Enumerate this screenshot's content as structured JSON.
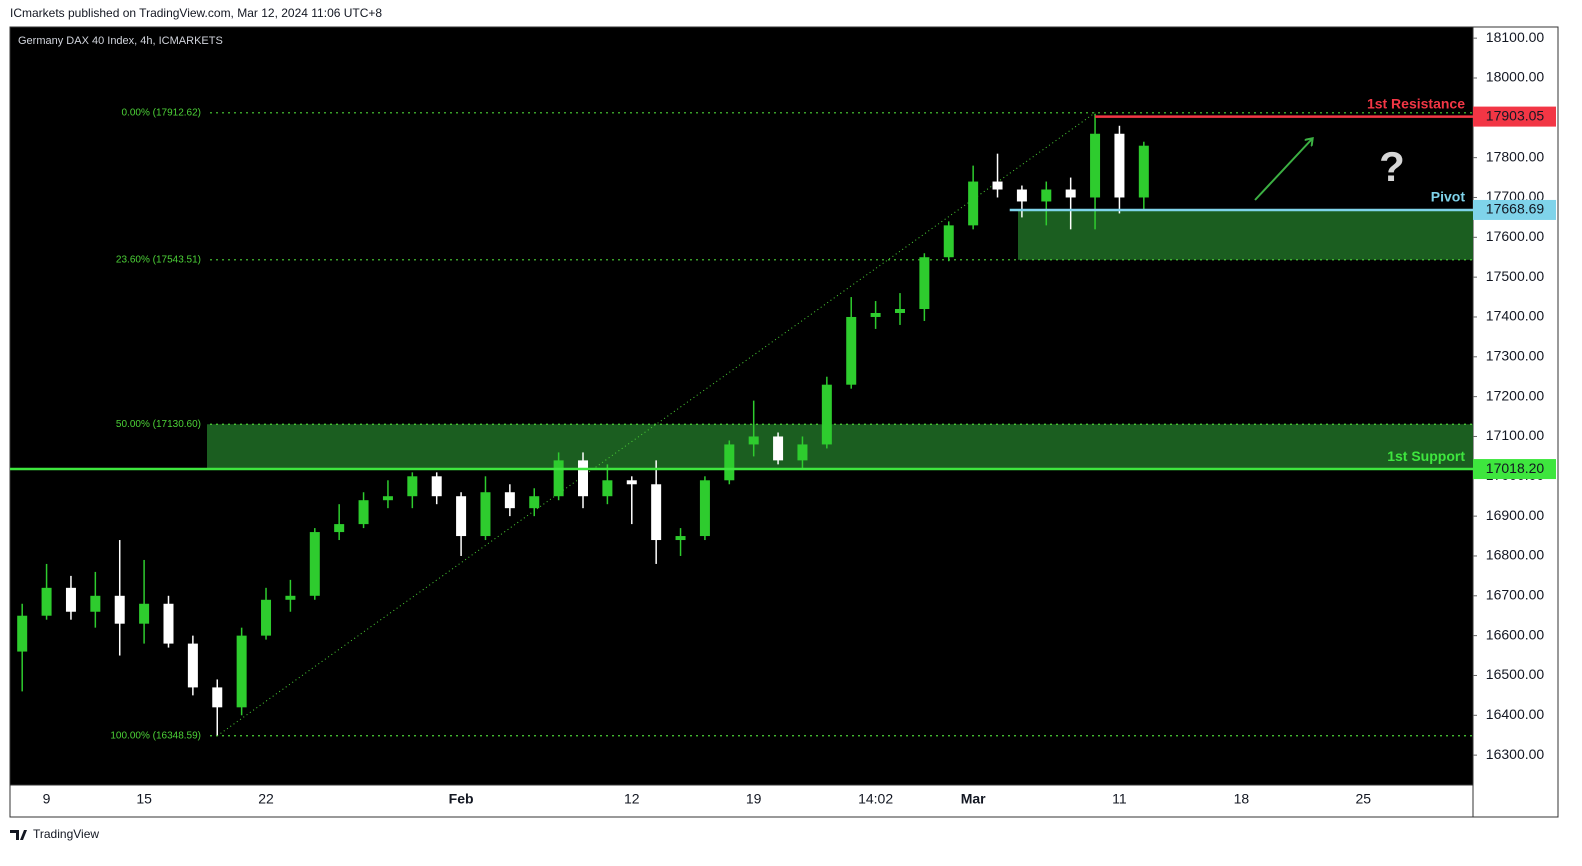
{
  "header": {
    "publisher": "ICmarkets published on TradingView.com, Mar 12, 2024 11:06 UTC+8",
    "footer": "TradingView"
  },
  "chart_data": {
    "type": "candlestick",
    "title": "Germany DAX 40 Index, 4h, ICMARKETS",
    "categories": [
      null,
      "9",
      null,
      null,
      null,
      "15",
      null,
      null,
      null,
      null,
      "22",
      null,
      null,
      null,
      null,
      null,
      null,
      null,
      "Feb",
      null,
      null,
      null,
      null,
      null,
      null,
      "12",
      null,
      null,
      null,
      null,
      "19",
      null,
      null,
      null,
      null,
      "14:02",
      null,
      null,
      null,
      "Mar",
      null,
      null,
      null,
      null,
      null,
      "11",
      null,
      null,
      null,
      null,
      "18",
      null,
      null,
      null,
      null,
      "25",
      null,
      null,
      null,
      null
    ],
    "open": [
      16560,
      16650,
      16720,
      16660,
      16700,
      16630,
      16680,
      16580,
      16470,
      16420,
      16600,
      16690,
      16700,
      16860,
      16880,
      16940,
      16950,
      17000,
      16950,
      16850,
      16960,
      16920,
      16950,
      17040,
      16950,
      16990,
      16980,
      16840,
      16850,
      16990,
      17080,
      17100,
      17040,
      17080,
      17230,
      17400,
      17410,
      17420,
      17550,
      17630,
      17740,
      17720,
      17690,
      17720,
      17700,
      17860,
      17700,
      null,
      null,
      null,
      null,
      null,
      null,
      null,
      null,
      null,
      null,
      null,
      null,
      null
    ],
    "high": [
      16680,
      16780,
      16750,
      16760,
      16840,
      16790,
      16700,
      16600,
      16490,
      16620,
      16720,
      16740,
      16870,
      16930,
      16960,
      16990,
      17010,
      17010,
      16960,
      17000,
      16980,
      16970,
      17060,
      17060,
      17030,
      17000,
      17040,
      16870,
      17000,
      17090,
      17190,
      17110,
      17100,
      17250,
      17450,
      17440,
      17460,
      17560,
      17640,
      17780,
      17810,
      17730,
      17740,
      17750,
      17910,
      17880,
      17840,
      null,
      null,
      null,
      null,
      null,
      null,
      null,
      null,
      null,
      null,
      null,
      null,
      null
    ],
    "low": [
      16460,
      16640,
      16640,
      16620,
      16550,
      16580,
      16570,
      16450,
      16350,
      16400,
      16590,
      16660,
      16690,
      16840,
      16870,
      16920,
      16920,
      16930,
      16800,
      16840,
      16900,
      16900,
      16940,
      16920,
      16930,
      16880,
      16780,
      16800,
      16840,
      16980,
      17050,
      17030,
      17020,
      17070,
      17220,
      17370,
      17380,
      17390,
      17540,
      17620,
      17700,
      17650,
      17630,
      17620,
      17620,
      17660,
      17670,
      null,
      null,
      null,
      null,
      null,
      null,
      null,
      null,
      null,
      null,
      null,
      null,
      null
    ],
    "close": [
      16650,
      16720,
      16660,
      16700,
      16630,
      16680,
      16580,
      16470,
      16420,
      16600,
      16690,
      16700,
      16860,
      16880,
      16940,
      16950,
      17000,
      16950,
      16850,
      16960,
      16920,
      16950,
      17040,
      16950,
      16990,
      16980,
      16840,
      16850,
      16990,
      17080,
      17100,
      17040,
      17080,
      17230,
      17400,
      17410,
      17420,
      17550,
      17630,
      17740,
      17720,
      17690,
      17720,
      17700,
      17860,
      17700,
      17830,
      null,
      null,
      null,
      null,
      null,
      null,
      null,
      null,
      null,
      null,
      null,
      null,
      null
    ],
    "up_color": "#2ecc2e",
    "down_color": "#ffffff",
    "ylim": [
      16225,
      18128
    ],
    "yticks": [
      {
        "value": 16300,
        "label": "16300.00"
      },
      {
        "value": 16400,
        "label": "16400.00"
      },
      {
        "value": 16500,
        "label": "16500.00"
      },
      {
        "value": 16600,
        "label": "16600.00"
      },
      {
        "value": 16700,
        "label": "16700.00"
      },
      {
        "value": 16800,
        "label": "16800.00"
      },
      {
        "value": 16900,
        "label": "16900.00"
      },
      {
        "value": 17000,
        "label": "17000.00"
      },
      {
        "value": 17100,
        "label": "17100.00"
      },
      {
        "value": 17200,
        "label": "17200.00"
      },
      {
        "value": 17300,
        "label": "17300.00"
      },
      {
        "value": 17400,
        "label": "17400.00"
      },
      {
        "value": 17500,
        "label": "17500.00"
      },
      {
        "value": 17600,
        "label": "17600.00"
      },
      {
        "value": 17700,
        "label": "17700.00"
      },
      {
        "value": 17800,
        "label": "17800.00"
      },
      {
        "value": 17900,
        "label": "17900.00"
      },
      {
        "value": 18000,
        "label": "18000.00"
      },
      {
        "value": 18100,
        "label": "18100.00"
      }
    ],
    "fib_levels": [
      {
        "label": "0.00% (17912.62)",
        "value": 17912.62
      },
      {
        "label": "23.60% (17543.51)",
        "value": 17543.51
      },
      {
        "label": "50.00% (17130.60)",
        "value": 17130.6
      },
      {
        "label": "100.00% (16348.59)",
        "value": 16348.59
      }
    ],
    "fib_color": "#4cd137",
    "levels": [
      {
        "name": "1st Resistance",
        "value": 17903.05,
        "value_label": "17903.05",
        "color": "#f23645"
      },
      {
        "name": "Pivot",
        "value": 17668.69,
        "value_label": "17668.69",
        "color": "#7fd3ea"
      },
      {
        "name": "1st Support",
        "value": 17018.2,
        "value_label": "17018.20",
        "color": "#3ee63e"
      }
    ],
    "zone_color": "#1b5e20",
    "annotations": [
      "?"
    ]
  }
}
